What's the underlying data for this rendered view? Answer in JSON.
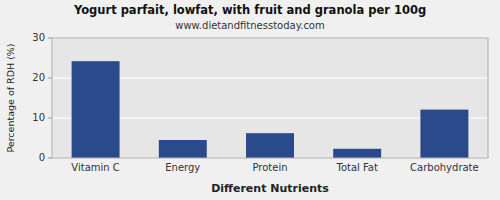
{
  "chart_data": {
    "type": "bar",
    "title": "Yogurt parfait, lowfat, with fruit and granola per 100g",
    "subtitle": "www.dietandfitnesstoday.com",
    "xlabel": "Different Nutrients",
    "ylabel": "Percentage of RDH (%)",
    "categories": [
      "Vitamin C",
      "Energy",
      "Protein",
      "Total Fat",
      "Carbohydrate"
    ],
    "values": [
      24.2,
      4.5,
      6.2,
      2.3,
      12.1
    ],
    "color": "#2b4a8b",
    "ylim": [
      0,
      30
    ],
    "yticks": [
      0,
      10,
      20,
      30
    ],
    "grid": true
  }
}
